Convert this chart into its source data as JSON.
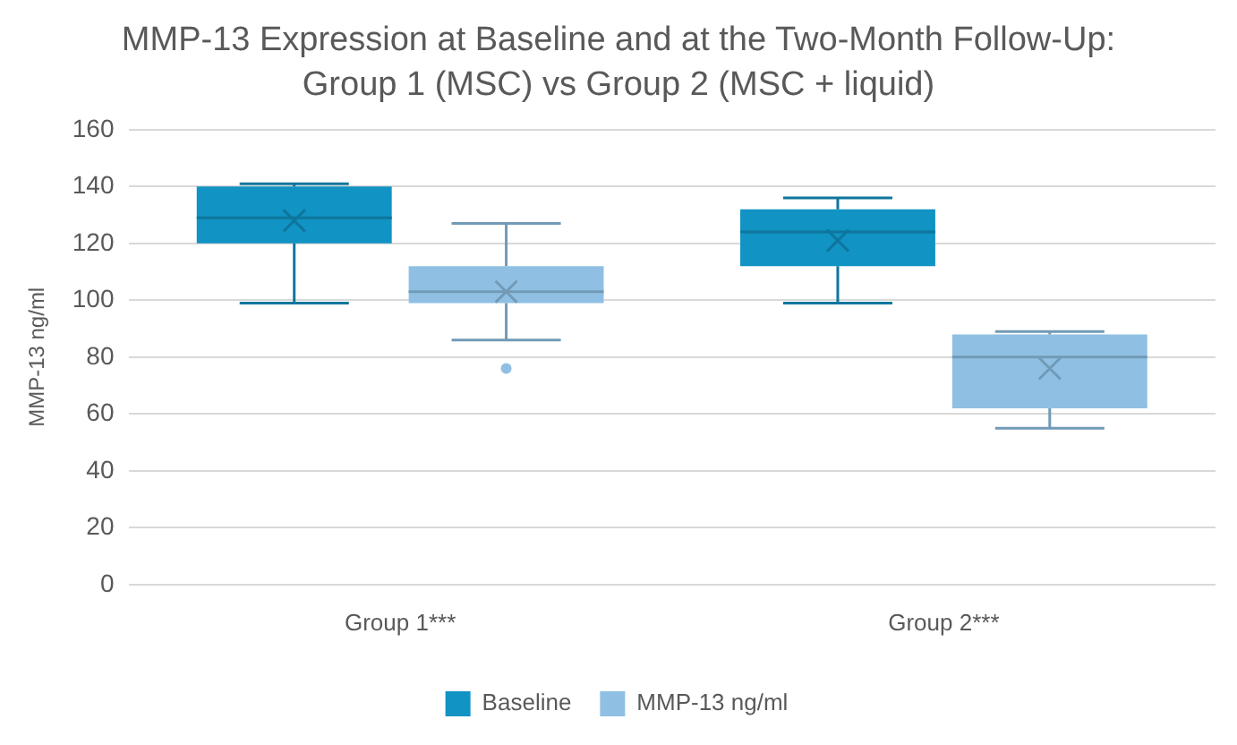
{
  "chart_data": {
    "type": "box",
    "title": "MMP-13 Expression at Baseline and at the Two-Month Follow-Up: Group 1 (MSC) vs Group 2 (MSC + liquid)",
    "ylabel": "MMP-13 ng/ml",
    "categories": [
      "Group 1***",
      "Group 2***"
    ],
    "series": [
      {
        "name": "Baseline",
        "color": "#1193c3",
        "boxes": [
          {
            "low": 99,
            "q1": 120,
            "median": 129,
            "q3": 140,
            "high": 141,
            "mean": 128
          },
          {
            "low": 99,
            "q1": 112,
            "median": 124,
            "q3": 132,
            "high": 136,
            "mean": 121
          }
        ]
      },
      {
        "name": "MMP-13 ng/ml",
        "color": "#8fc0e3",
        "boxes": [
          {
            "low": 86,
            "q1": 99,
            "median": 103,
            "q3": 112,
            "high": 127,
            "mean": 103,
            "outliers": [
              76
            ]
          },
          {
            "low": 55,
            "q1": 62,
            "median": 80,
            "q3": 88,
            "high": 89,
            "mean": 76
          }
        ]
      }
    ],
    "ylim": [
      0,
      160
    ],
    "yticks": [
      0,
      20,
      40,
      60,
      80,
      100,
      120,
      140,
      160
    ],
    "grid": "y",
    "legend": "bottom"
  }
}
